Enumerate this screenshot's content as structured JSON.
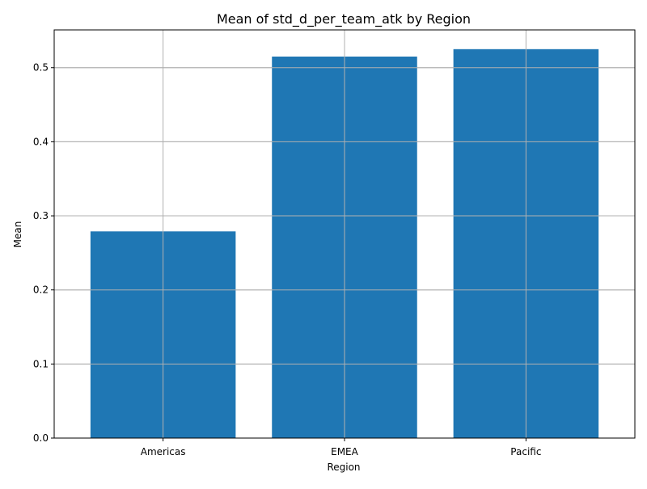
{
  "chart_data": {
    "type": "bar",
    "title": "Mean of std_d_per_team_atk by Region",
    "xlabel": "Region",
    "ylabel": "Mean",
    "categories": [
      "Americas",
      "EMEA",
      "Pacific"
    ],
    "values": [
      0.279,
      0.515,
      0.525
    ],
    "ylim": [
      0,
      0.551
    ],
    "yticks": [
      "0.0",
      "0.1",
      "0.2",
      "0.3",
      "0.4",
      "0.5"
    ],
    "grid": true,
    "bar_color": "#1f77b4",
    "grid_color": "#b0b0b0"
  }
}
